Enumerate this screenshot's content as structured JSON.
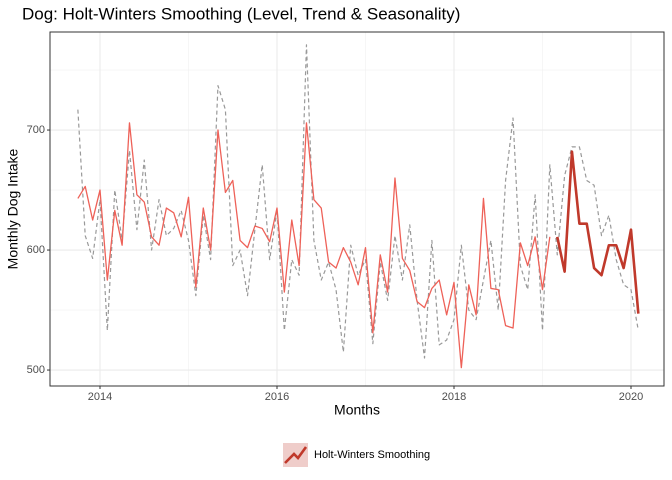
{
  "chart_data": {
    "type": "line",
    "title": "Dog: Holt-Winters Smoothing (Level, Trend & Seasonality)",
    "x_label": "Months",
    "y_label": "Monthly Dog Intake",
    "x": [
      2013.75,
      2013.833,
      2013.917,
      2014.0,
      2014.083,
      2014.167,
      2014.25,
      2014.333,
      2014.417,
      2014.5,
      2014.583,
      2014.667,
      2014.75,
      2014.833,
      2014.917,
      2015.0,
      2015.083,
      2015.167,
      2015.25,
      2015.333,
      2015.417,
      2015.5,
      2015.583,
      2015.667,
      2015.75,
      2015.833,
      2015.917,
      2016.0,
      2016.083,
      2016.167,
      2016.25,
      2016.333,
      2016.417,
      2016.5,
      2016.583,
      2016.667,
      2016.75,
      2016.833,
      2016.917,
      2017.0,
      2017.083,
      2017.167,
      2017.25,
      2017.333,
      2017.417,
      2017.5,
      2017.583,
      2017.667,
      2017.75,
      2017.833,
      2017.917,
      2018.0,
      2018.083,
      2018.167,
      2018.25,
      2018.333,
      2018.417,
      2018.5,
      2018.583,
      2018.667,
      2018.75,
      2018.833,
      2018.917,
      2019.0,
      2019.083,
      2019.167,
      2019.25,
      2019.333,
      2019.417,
      2019.5,
      2019.583,
      2019.667,
      2019.75,
      2019.833,
      2019.917,
      2020.0,
      2020.083
    ],
    "series": [
      {
        "color": "#999999",
        "dashed": true,
        "linewidth": 1.2,
        "values": [
          717,
          612,
          593,
          642,
          533,
          650,
          608,
          683,
          617,
          675,
          600,
          642,
          612,
          618,
          633,
          608,
          562,
          629,
          592,
          737,
          717,
          587,
          600,
          562,
          617,
          671,
          592,
          633,
          533,
          592,
          579,
          771,
          608,
          575,
          590,
          567,
          515,
          604,
          579,
          592,
          522,
          590,
          558,
          612,
          575,
          621,
          558,
          510,
          608,
          521,
          525,
          542,
          604,
          550,
          542,
          575,
          608,
          550,
          658,
          710,
          587,
          567,
          646,
          533,
          671,
          596,
          662,
          686,
          686,
          658,
          654,
          612,
          629,
          592,
          571,
          567,
          533
        ]
      },
      {
        "color": "#ee6158",
        "dashed": false,
        "linewidth": 1.3,
        "values": [
          643,
          653,
          625,
          650,
          575,
          633,
          604,
          706,
          646,
          640,
          611,
          604,
          635,
          631,
          611,
          644,
          569,
          635,
          600,
          700,
          648,
          658,
          608,
          602,
          620,
          618,
          607,
          635,
          565,
          625,
          587,
          706,
          642,
          635,
          590,
          585,
          602,
          590,
          571,
          602,
          531,
          596,
          565,
          660,
          593,
          583,
          557,
          552,
          568,
          575,
          546,
          573,
          502,
          571,
          546,
          643,
          568,
          567,
          537,
          535,
          606,
          587,
          611,
          567,
          611,
          null,
          null,
          null,
          null,
          null,
          null,
          null,
          null,
          null,
          null,
          null,
          null
        ]
      },
      {
        "name": "Holt-Winters Smoothing",
        "color": "#c0392b",
        "dashed": false,
        "linewidth": 2.6,
        "values": [
          null,
          null,
          null,
          null,
          null,
          null,
          null,
          null,
          null,
          null,
          null,
          null,
          null,
          null,
          null,
          null,
          null,
          null,
          null,
          null,
          null,
          null,
          null,
          null,
          null,
          null,
          null,
          null,
          null,
          null,
          null,
          null,
          null,
          null,
          null,
          null,
          null,
          null,
          null,
          null,
          null,
          null,
          null,
          null,
          null,
          null,
          null,
          null,
          null,
          null,
          null,
          null,
          null,
          null,
          null,
          null,
          null,
          null,
          null,
          null,
          null,
          null,
          null,
          null,
          null,
          611,
          582,
          682,
          622,
          622,
          585,
          579,
          604,
          604,
          585,
          617,
          547
        ]
      }
    ],
    "xlim": [
      2013.435,
      2020.373
    ],
    "xticks": [
      2014,
      2016,
      2018,
      2020
    ],
    "ylim": [
      486.7,
      781.7
    ],
    "yticks": [
      500,
      600,
      700
    ],
    "grid": true,
    "legend": "bottom"
  }
}
